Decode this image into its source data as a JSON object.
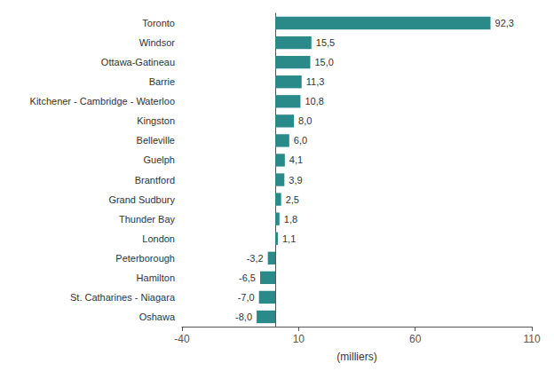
{
  "chart_data": {
    "type": "bar",
    "orientation": "horizontal",
    "categories": [
      "Oshawa",
      "St. Catharines - Niagara",
      "Hamilton",
      "Peterborough",
      "London",
      "Thunder Bay",
      "Grand Sudbury",
      "Brantford",
      "Guelph",
      "Belleville",
      "Kingston",
      "Kitchener - Cambridge - Waterloo",
      "Barrie",
      "Ottawa-Gatineau",
      "Windsor",
      "Toronto"
    ],
    "values": [
      -8.0,
      -7.0,
      -6.5,
      -3.2,
      1.1,
      1.8,
      2.5,
      3.9,
      4.1,
      6.0,
      8.0,
      10.8,
      11.3,
      15.0,
      15.5,
      92.3
    ],
    "value_labels": [
      "-8,0",
      "-7,0",
      "-6,5",
      "-3,2",
      "1,1",
      "1,8",
      "2,5",
      "3,9",
      "4,1",
      "6,0",
      "8,0",
      "10,8",
      "11,3",
      "15,0",
      "15,5",
      "92,3"
    ],
    "color": "#2a8a8a",
    "xlabel": "(milliers)",
    "xlim": [
      -40,
      110
    ],
    "xticks": [
      -40,
      10,
      60,
      110
    ],
    "data_labels": true,
    "grid": false
  }
}
